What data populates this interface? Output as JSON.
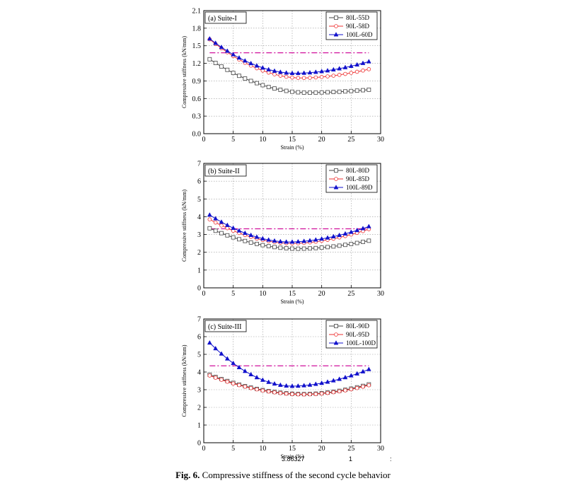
{
  "caption": {
    "label": "Fig. 6.",
    "text": "Compressive stiffness of the second cycle behavior"
  },
  "artifacts": {
    "left": "3.86327",
    "right": "1",
    "end": ":"
  },
  "chart_data": [
    {
      "type": "line",
      "title": "(a) Suite-I",
      "xlabel": "Strain (%)",
      "ylabel": "Compressive stiffness (kN/mm)",
      "xlim": [
        0,
        30
      ],
      "ylim": [
        0,
        2.1
      ],
      "xticks": [
        0,
        5,
        10,
        15,
        20,
        25,
        30
      ],
      "yticks": [
        0.0,
        0.3,
        0.6,
        0.9,
        1.2,
        1.5,
        1.8,
        2.1
      ],
      "yticklabels": [
        "0.0",
        "0.3",
        "0.6",
        "0.9",
        "1.2",
        "1.5",
        "1.8",
        "2.1"
      ],
      "grid": true,
      "legend_position": "top-right",
      "reference_line": 1.38,
      "series": [
        {
          "name": "80L-55D",
          "color": "#444444",
          "marker": "square",
          "x0": 1,
          "min_x": 17.5,
          "v_start": 1.27,
          "v_min": 0.7,
          "v_end": 0.75
        },
        {
          "name": "90L-58D",
          "color": "#ee3333",
          "marker": "circle-open",
          "x0": 1,
          "min_x": 16.5,
          "v_start": 1.61,
          "v_min": 0.95,
          "v_end": 1.1
        },
        {
          "name": "100L-60D",
          "color": "#1111cc",
          "marker": "triangle",
          "x0": 1,
          "min_x": 15.5,
          "v_start": 1.62,
          "v_min": 1.03,
          "v_end": 1.23
        }
      ]
    },
    {
      "type": "line",
      "title": "(b) Suite-II",
      "xlabel": "Strain (%)",
      "ylabel": "Compressive stiffness (kN/mm)",
      "xlim": [
        0,
        30
      ],
      "ylim": [
        0,
        7
      ],
      "xticks": [
        0,
        5,
        10,
        15,
        20,
        25,
        30
      ],
      "yticks": [
        0,
        1,
        2,
        3,
        4,
        5,
        6,
        7
      ],
      "yticklabels": [
        "0",
        "1",
        "2",
        "3",
        "4",
        "5",
        "6",
        "7"
      ],
      "grid": true,
      "legend_position": "top-right",
      "reference_line": 3.32,
      "series": [
        {
          "name": "80L-80D",
          "color": "#444444",
          "marker": "square",
          "x0": 1,
          "min_x": 16,
          "v_start": 3.35,
          "v_min": 2.2,
          "v_end": 2.65
        },
        {
          "name": "90L-85D",
          "color": "#ee3333",
          "marker": "circle-open",
          "x0": 1,
          "min_x": 15,
          "v_start": 3.85,
          "v_min": 2.5,
          "v_end": 3.3
        },
        {
          "name": "100L-89D",
          "color": "#1111cc",
          "marker": "triangle",
          "x0": 1,
          "min_x": 14.5,
          "v_start": 4.1,
          "v_min": 2.58,
          "v_end": 3.45
        }
      ]
    },
    {
      "type": "line",
      "title": "(c) Suite-III",
      "xlabel": "Strain (%)",
      "ylabel": "Compressive stiffness (kN/mm)",
      "xlim": [
        0,
        30
      ],
      "ylim": [
        0,
        7
      ],
      "xticks": [
        0,
        5,
        10,
        15,
        20,
        25,
        30
      ],
      "yticks": [
        0,
        1,
        2,
        3,
        4,
        5,
        6,
        7
      ],
      "yticklabels": [
        "0",
        "1",
        "2",
        "3",
        "4",
        "5",
        "6",
        "7"
      ],
      "grid": true,
      "legend_position": "top-right",
      "reference_line": 4.35,
      "series": [
        {
          "name": "80L-90D",
          "color": "#444444",
          "marker": "square",
          "x0": 1,
          "min_x": 17,
          "v_start": 3.85,
          "v_min": 2.75,
          "v_end": 3.3
        },
        {
          "name": "90L-95D",
          "color": "#ee3333",
          "marker": "circle-open",
          "x0": 1,
          "min_x": 17,
          "v_start": 3.8,
          "v_min": 2.73,
          "v_end": 3.25
        },
        {
          "name": "100L-100D",
          "color": "#1111cc",
          "marker": "triangle",
          "x0": 1,
          "min_x": 15,
          "v_start": 5.65,
          "v_min": 3.2,
          "v_end": 4.15
        }
      ]
    }
  ]
}
